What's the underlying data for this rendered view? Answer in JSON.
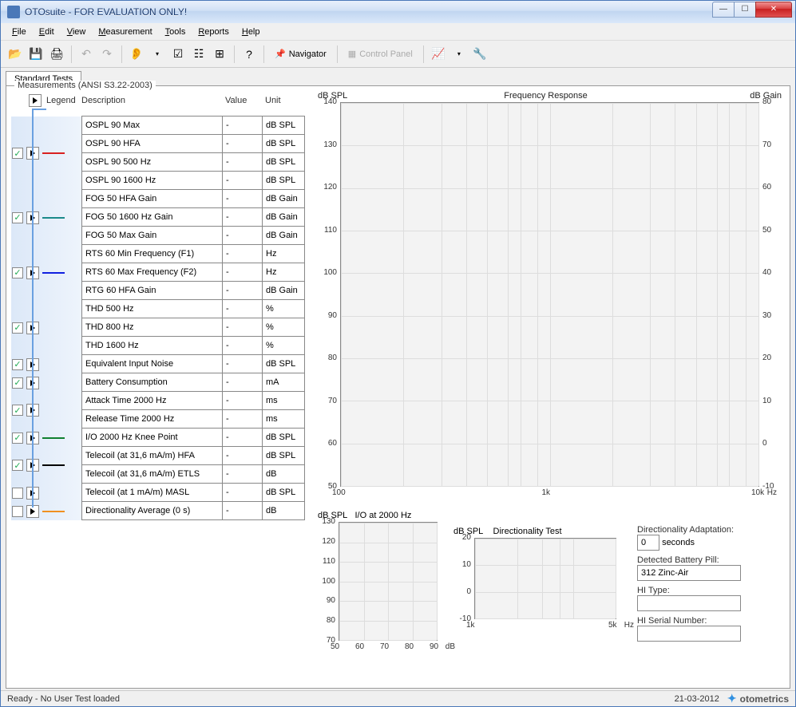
{
  "window": {
    "title": "OTOsuite - FOR EVALUATION ONLY!"
  },
  "menu": [
    "File",
    "Edit",
    "View",
    "Measurement",
    "Tools",
    "Reports",
    "Help"
  ],
  "toolbar": {
    "navigator": "Navigator",
    "control_panel": "Control Panel"
  },
  "tab": {
    "label": "Standard Tests"
  },
  "left": {
    "title": "Measurements (ANSI S3.22-2003)",
    "headers": {
      "legend": "Legend",
      "description": "Description",
      "value": "Value",
      "unit": "Unit"
    },
    "groups": [
      {
        "checked": true,
        "legend_color": "#d82020",
        "rows": [
          {
            "desc": "OSPL 90 Max",
            "val": "-",
            "unit": "dB SPL"
          },
          {
            "desc": "OSPL 90 HFA",
            "val": "-",
            "unit": "dB SPL"
          },
          {
            "desc": "OSPL 90 500 Hz",
            "val": "-",
            "unit": "dB SPL"
          },
          {
            "desc": "OSPL 90 1600 Hz",
            "val": "-",
            "unit": "dB SPL"
          }
        ]
      },
      {
        "checked": true,
        "legend_color": "#1a8a8a",
        "rows": [
          {
            "desc": "FOG 50 HFA Gain",
            "val": "-",
            "unit": "dB Gain"
          },
          {
            "desc": "FOG 50 1600 Hz Gain",
            "val": "-",
            "unit": "dB Gain"
          },
          {
            "desc": "FOG 50 Max Gain",
            "val": "-",
            "unit": "dB Gain"
          }
        ]
      },
      {
        "checked": true,
        "legend_color": "#1020e0",
        "rows": [
          {
            "desc": "RTS 60 Min Frequency (F1)",
            "val": "-",
            "unit": "Hz"
          },
          {
            "desc": "RTS 60 Max Frequency (F2)",
            "val": "-",
            "unit": "Hz"
          },
          {
            "desc": "RTG 60 HFA Gain",
            "val": "-",
            "unit": "dB Gain"
          }
        ]
      },
      {
        "checked": true,
        "legend_color": "",
        "rows": [
          {
            "desc": "THD 500 Hz",
            "val": "-",
            "unit": "%"
          },
          {
            "desc": "THD 800 Hz",
            "val": "-",
            "unit": "%"
          },
          {
            "desc": "THD 1600 Hz",
            "val": "-",
            "unit": "%"
          }
        ]
      },
      {
        "checked": true,
        "legend_color": "",
        "rows": [
          {
            "desc": "Equivalent Input Noise",
            "val": "-",
            "unit": "dB SPL"
          }
        ]
      },
      {
        "checked": true,
        "legend_color": "",
        "rows": [
          {
            "desc": "Battery Consumption",
            "val": "-",
            "unit": "mA"
          }
        ]
      },
      {
        "checked": true,
        "legend_color": "",
        "rows": [
          {
            "desc": "Attack Time 2000 Hz",
            "val": "-",
            "unit": "ms"
          },
          {
            "desc": "Release Time 2000 Hz",
            "val": "-",
            "unit": "ms"
          }
        ]
      },
      {
        "checked": true,
        "legend_color": "#108030",
        "rows": [
          {
            "desc": "I/O 2000 Hz Knee Point",
            "val": "-",
            "unit": "dB SPL"
          }
        ]
      },
      {
        "checked": true,
        "legend_color": "#000000",
        "rows": [
          {
            "desc": "Telecoil (at 31,6 mA/m) HFA",
            "val": "-",
            "unit": "dB SPL"
          },
          {
            "desc": "Telecoil (at 31,6 mA/m) ETLS",
            "val": "-",
            "unit": "dB"
          }
        ]
      },
      {
        "checked": false,
        "legend_color": "",
        "rows": [
          {
            "desc": "Telecoil (at 1 mA/m) MASL",
            "val": "-",
            "unit": "dB SPL"
          }
        ]
      },
      {
        "checked": false,
        "legend_color": "#f09020",
        "rows": [
          {
            "desc": "Directionality Average (0 s)",
            "val": "-",
            "unit": "dB"
          }
        ]
      }
    ]
  },
  "main_chart": {
    "title": "Frequency Response",
    "y_left_label": "dB SPL",
    "y_right_label": "dB Gain",
    "y_left_ticks": [
      50,
      60,
      70,
      80,
      90,
      100,
      110,
      120,
      130,
      140
    ],
    "y_right_ticks": [
      -10,
      0,
      10,
      20,
      30,
      40,
      50,
      60,
      70,
      80
    ],
    "x_ticks": [
      "100",
      "1k",
      "10k"
    ],
    "x_unit": "Hz",
    "x_gridlines_pct": [
      0,
      15,
      24,
      30,
      35,
      40,
      43,
      47,
      50,
      65,
      74,
      80,
      85,
      90,
      93,
      97,
      100
    ],
    "background": "#f3f3f3",
    "grid_color": "#dddddd",
    "border_color": "#888888"
  },
  "io_chart": {
    "title_left": "dB SPL",
    "title_right": "I/O at 2000 Hz",
    "y_ticks": [
      70,
      80,
      90,
      100,
      110,
      120,
      130
    ],
    "x_ticks": [
      50,
      60,
      70,
      80,
      90
    ],
    "x_unit": "dB",
    "background": "#f3f3f3",
    "grid_color": "#dddddd"
  },
  "dir_chart": {
    "title_left": "dB SPL",
    "title_right": "Directionality Test",
    "y_ticks": [
      -10,
      0,
      10,
      20
    ],
    "x_ticks": [
      "1k",
      "5k"
    ],
    "x_unit": "Hz",
    "x_gridlines_pct": [
      0,
      30,
      48,
      60,
      70,
      100
    ],
    "background": "#f3f3f3",
    "grid_color": "#dddddd"
  },
  "info": {
    "dir_adapt_label": "Directionality Adaptation:",
    "dir_adapt_value": "0",
    "dir_adapt_unit": "seconds",
    "battery_label": "Detected  Battery Pill:",
    "battery_value": "312 Zinc-Air",
    "hi_type_label": "HI Type:",
    "hi_type_value": "",
    "hi_serial_label": "HI Serial Number:",
    "hi_serial_value": ""
  },
  "status": {
    "left": "Ready - No User Test loaded",
    "date": "21-03-2012",
    "brand": "otometrics"
  }
}
